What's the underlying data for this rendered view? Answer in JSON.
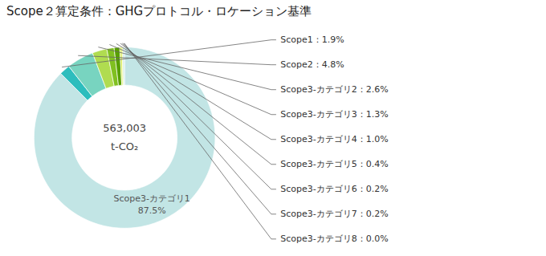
{
  "chart_data": {
    "type": "donut",
    "title": "Scope２算定条件：GHGプロトコル・ロケーション基準",
    "categories": [
      "Scope3-カテゴリ1",
      "Scope1",
      "Scope2",
      "Scope3-カテゴリ2",
      "Scope3-カテゴリ3",
      "Scope3-カテゴリ4",
      "Scope3-カテゴリ5",
      "Scope3-カテゴリ6",
      "Scope3-カテゴリ7",
      "Scope3-カテゴリ8"
    ],
    "values": [
      87.5,
      1.9,
      4.8,
      2.6,
      1.3,
      1.0,
      0.4,
      0.2,
      0.2,
      0.05
    ],
    "colors": [
      "#c2e5e5",
      "#2dbdbd",
      "#78d4c0",
      "#b0dc50",
      "#80c020",
      "#58a000",
      "#d8ec5c",
      "#f2f580",
      "#38b8b0",
      "#5090c0"
    ],
    "center_text": [
      "563,003",
      "t-CO₂"
    ],
    "annotations": [
      {
        "category": "Scope3-カテゴリ1",
        "text": "Scope3-カテゴリ1\n87.5%"
      },
      {
        "category": "Scope1",
        "text": "Scope1：1.9%"
      },
      {
        "category": "Scope2",
        "text": "Scope2：4.8%"
      },
      {
        "category": "Scope3-カテゴリ2",
        "text": "Scope3-カテゴリ2：2.6%"
      },
      {
        "category": "Scope3-カテゴリ3",
        "text": "Scope3-カテゴリ3：1.3%"
      },
      {
        "category": "Scope3-カテゴリ4",
        "text": "Scope3-カテゴリ4：1.0%"
      },
      {
        "category": "Scope3-カテゴリ5",
        "text": "Scope3-カテゴリ5：0.4%"
      },
      {
        "category": "Scope3-カテゴリ6",
        "text": "Scope3-カテゴリ6：0.2%"
      },
      {
        "category": "Scope3-カテゴリ7",
        "text": "Scope3-カテゴリ7：0.2%"
      },
      {
        "category": "Scope3-カテゴリ8",
        "text": "Scope3-カテゴリ8：0.0%"
      }
    ]
  }
}
